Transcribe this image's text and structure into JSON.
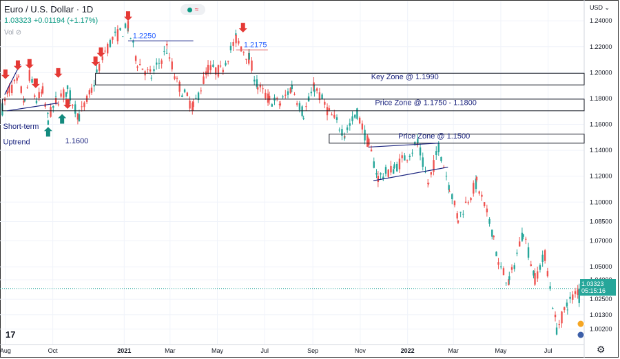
{
  "header": {
    "title": "Euro / U.S. Dollar · 1D",
    "price_line": "1.03323  +0.01194 (+1.17%)",
    "vol_label": "Vol",
    "pill_icon": "wave-icon",
    "pill_glyph": "≈"
  },
  "axis": {
    "currency": "USD",
    "tv_logo": "17",
    "settings_icon": "⚙",
    "current_price": "1.03323",
    "countdown": "05:15:16"
  },
  "colors": {
    "up": "#26a69a",
    "down": "#ef5350",
    "arrow": "#e53935",
    "arrow_up": "#138a7e",
    "zone": "#131722",
    "trend": "#1a237e",
    "level_blue": "#283593",
    "level_red": "#e57373"
  },
  "chart_data": {
    "type": "candlestick",
    "title": "Euro / U.S. Dollar · 1D",
    "ylim": [
      0.99,
      1.255
    ],
    "y_ticks": [
      "1.24000",
      "1.22000",
      "1.20000",
      "1.18000",
      "1.16000",
      "1.14000",
      "1.12000",
      "1.10000",
      "1.08500",
      "1.07000",
      "1.05000",
      "1.04000",
      "1.02500",
      "1.01300",
      "1.00200"
    ],
    "y_tick_values": [
      1.24,
      1.22,
      1.2,
      1.18,
      1.16,
      1.14,
      1.12,
      1.1,
      1.085,
      1.07,
      1.05,
      1.04,
      1.025,
      1.013,
      1.002
    ],
    "x_ticks": [
      "Aug",
      "Oct",
      "2021",
      "Mar",
      "May",
      "Jul",
      "Sep",
      "Nov",
      "2022",
      "Mar",
      "May",
      "Jul"
    ],
    "x_tick_dates": [
      "2020-08",
      "2020-10",
      "2021-01",
      "2021-03",
      "2021-05",
      "2021-07",
      "2021-09",
      "2021-11",
      "2022-01",
      "2022-03",
      "2022-05",
      "2022-07"
    ],
    "price_path": [
      [
        "2020-07-28",
        1.172
      ],
      [
        "2020-08-06",
        1.187
      ],
      [
        "2020-08-18",
        1.193
      ],
      [
        "2020-08-26",
        1.176
      ],
      [
        "2020-09-01",
        1.198
      ],
      [
        "2020-09-10",
        1.178
      ],
      [
        "2020-09-18",
        1.185
      ],
      [
        "2020-09-25",
        1.164
      ],
      [
        "2020-10-05",
        1.178
      ],
      [
        "2020-10-20",
        1.186
      ],
      [
        "2020-11-04",
        1.166
      ],
      [
        "2020-11-20",
        1.186
      ],
      [
        "2020-12-04",
        1.213
      ],
      [
        "2020-12-17",
        1.226
      ],
      [
        "2021-01-06",
        1.235
      ],
      [
        "2021-01-18",
        1.208
      ],
      [
        "2021-02-05",
        1.197
      ],
      [
        "2021-02-25",
        1.218
      ],
      [
        "2021-03-10",
        1.192
      ],
      [
        "2021-03-31",
        1.173
      ],
      [
        "2021-04-19",
        1.203
      ],
      [
        "2021-05-05",
        1.201
      ],
      [
        "2021-05-25",
        1.226
      ],
      [
        "2021-06-11",
        1.211
      ],
      [
        "2021-06-22",
        1.189
      ],
      [
        "2021-07-07",
        1.179
      ],
      [
        "2021-07-21",
        1.176
      ],
      [
        "2021-08-05",
        1.189
      ],
      [
        "2021-08-20",
        1.168
      ],
      [
        "2021-09-03",
        1.189
      ],
      [
        "2021-09-22",
        1.169
      ],
      [
        "2021-10-12",
        1.153
      ],
      [
        "2021-10-28",
        1.169
      ],
      [
        "2021-11-12",
        1.144
      ],
      [
        "2021-11-24",
        1.119
      ],
      [
        "2021-12-15",
        1.126
      ],
      [
        "2022-01-14",
        1.145
      ],
      [
        "2022-01-28",
        1.113
      ],
      [
        "2022-02-10",
        1.143
      ],
      [
        "2022-02-24",
        1.112
      ],
      [
        "2022-03-07",
        1.087
      ],
      [
        "2022-03-31",
        1.115
      ],
      [
        "2022-04-22",
        1.074
      ],
      [
        "2022-04-28",
        1.051
      ],
      [
        "2022-05-12",
        1.038
      ],
      [
        "2022-05-30",
        1.078
      ],
      [
        "2022-06-14",
        1.041
      ],
      [
        "2022-06-27",
        1.059
      ],
      [
        "2022-07-12",
        1.002
      ],
      [
        "2022-07-26",
        1.021
      ],
      [
        "2022-08-10",
        1.033
      ]
    ],
    "zones": [
      {
        "label": "Key Zone @ 1.1990",
        "low": 1.1905,
        "high": 1.1995,
        "start": "2020-11-25",
        "end": "2022-08-31"
      },
      {
        "label": "Price Zone @ 1.1750 - 1.1800",
        "low": 1.1705,
        "high": 1.1795,
        "start": "2020-07-28",
        "end": "2022-08-31"
      },
      {
        "label": "Price Zone @ 1.1500",
        "low": 1.1455,
        "high": 1.1525,
        "start": "2021-09-22",
        "end": "2022-08-31"
      }
    ],
    "levels": [
      {
        "label": "1.2250",
        "value": 1.2245,
        "start": "2021-01-06",
        "end": "2021-03-31",
        "style": "blue"
      },
      {
        "label": "1.2175",
        "value": 1.2175,
        "start": "2021-05-25",
        "end": "2021-07-05",
        "style": "red"
      }
    ],
    "trendlines": [
      {
        "points": [
          [
            "2020-07-31",
            1.183
          ],
          [
            "2020-08-20",
            1.2065
          ]
        ]
      },
      {
        "points": [
          [
            "2020-08-03",
            1.1705
          ],
          [
            "2020-10-08",
            1.1765
          ]
        ]
      },
      {
        "points": [
          [
            "2021-11-12",
            1.1425
          ],
          [
            "2022-02-10",
            1.1455
          ]
        ]
      },
      {
        "points": [
          [
            "2021-11-18",
            1.1165
          ],
          [
            "2022-02-22",
            1.127
          ]
        ]
      }
    ],
    "arrows_down": [
      [
        "2020-08-01",
        1.195
      ],
      [
        "2020-08-17",
        1.202
      ],
      [
        "2020-09-01",
        1.203
      ],
      [
        "2020-09-09",
        1.188
      ],
      [
        "2020-10-08",
        1.196
      ],
      [
        "2020-10-20",
        1.172
      ],
      [
        "2020-11-25",
        1.205
      ],
      [
        "2020-12-02",
        1.212
      ],
      [
        "2021-01-06",
        1.24
      ],
      [
        "2021-06-03",
        1.231
      ]
    ],
    "arrows_up": [
      [
        "2020-09-25",
        1.158
      ],
      [
        "2020-10-13",
        1.168
      ]
    ],
    "annotations": [
      {
        "text": "Key Zone @ 1.1990",
        "x": "2021-11-15",
        "y": 1.195,
        "cls": "ann-text"
      },
      {
        "text": "Price Zone @ 1.1750 - 1.1800",
        "x": "2021-11-20",
        "y": 1.175,
        "cls": "ann-text"
      },
      {
        "text": "Price Zone @ 1.1500",
        "x": "2021-12-20",
        "y": 1.149,
        "cls": "ann-text"
      },
      {
        "text": "1.2250",
        "x": "2021-01-12",
        "y": 1.2265,
        "cls": "ann-text-blue"
      },
      {
        "text": "1.2175",
        "x": "2021-06-04",
        "y": 1.2195,
        "cls": "ann-text-blue"
      },
      {
        "text": "Short-term",
        "x": "2020-07-29",
        "y": 1.1565,
        "cls": "ann-text"
      },
      {
        "text": "Uptrend",
        "x": "2020-07-29",
        "y": 1.1445,
        "cls": "ann-text"
      },
      {
        "text": "1.1600",
        "x": "2020-10-17",
        "y": 1.1455,
        "cls": "ann-text"
      }
    ],
    "current_price": 1.03323
  }
}
